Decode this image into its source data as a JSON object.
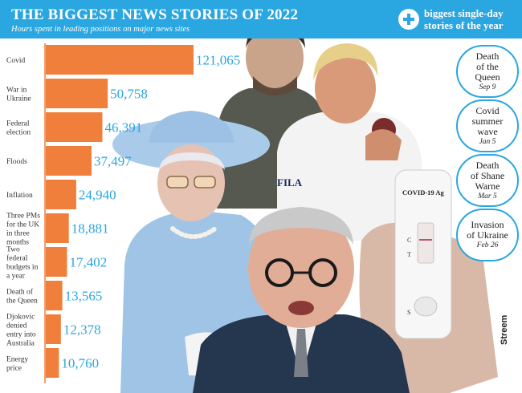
{
  "title": "THE BIGGEST NEWS STORIES OF 2022",
  "subtitle": "Hours spent in leading positions on major news sites",
  "right_panel": {
    "title_line1": "biggest single-day",
    "title_line2": "stories of the year",
    "items": [
      {
        "event": [
          "Death",
          "of the",
          "Queen"
        ],
        "date": "Sep 9"
      },
      {
        "event": [
          "Covid",
          "summer",
          "wave"
        ],
        "date": "Jan 5"
      },
      {
        "event": [
          "Death",
          "of Shane",
          "Warne"
        ],
        "date": "Mar 5"
      },
      {
        "event": [
          "Invasion",
          "of Ukraine"
        ],
        "date": "Feb 26"
      }
    ]
  },
  "credit": "Streem",
  "photo_text": {
    "shirt_brand": "FILA",
    "test_label": "COVID-19 Ag",
    "c": "C",
    "t": "T",
    "s": "S"
  },
  "colors": {
    "header": "#2aa6e0",
    "bar": "#f07f3c",
    "value_text": "#2aa6e0",
    "label_text": "#333333"
  },
  "chart_data": {
    "type": "bar",
    "orientation": "horizontal",
    "categories": [
      [
        "Covid"
      ],
      [
        "War in",
        "Ukraine"
      ],
      [
        "Federal",
        "election"
      ],
      [
        "Floods"
      ],
      [
        "Inflation"
      ],
      [
        "Three PMs",
        "for the UK",
        "in three",
        "months"
      ],
      [
        "Two",
        "federal",
        "budgets in",
        "a year"
      ],
      [
        "Death of",
        "the Queen"
      ],
      [
        "Djokovic",
        "denied",
        "entry into",
        "Australia"
      ],
      [
        "Energy",
        "price"
      ]
    ],
    "values": [
      121065,
      50758,
      46391,
      37497,
      24940,
      18881,
      17402,
      13565,
      12378,
      10760
    ],
    "value_labels": [
      "121,065",
      "50,758",
      "46,391",
      "37,497",
      "24,940",
      "18,881",
      "17,402",
      "13,565",
      "12,378",
      "10,760"
    ],
    "xlim": [
      0,
      121065
    ],
    "grid": false,
    "legend": "none"
  }
}
